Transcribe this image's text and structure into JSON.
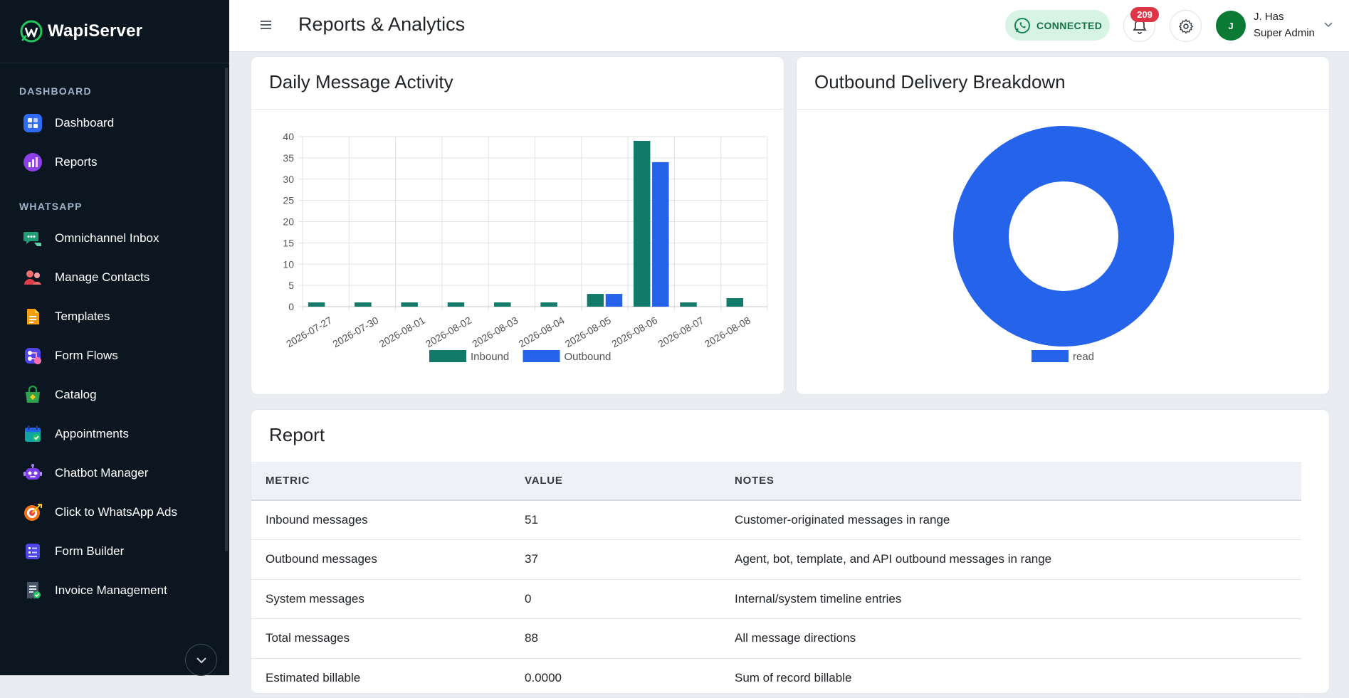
{
  "app": {
    "brand": "WapiServer"
  },
  "sidebar": {
    "sections": [
      {
        "title": "DASHBOARD"
      },
      {
        "title": "WHATSAPP"
      }
    ],
    "items": [
      {
        "label": "Dashboard",
        "icon": "dashboard-grid-icon"
      },
      {
        "label": "Reports",
        "icon": "reports-chart-icon"
      },
      {
        "label": "Omnichannel Inbox",
        "icon": "inbox-chat-icon"
      },
      {
        "label": "Manage Contacts",
        "icon": "contacts-icon"
      },
      {
        "label": "Templates",
        "icon": "template-document-icon"
      },
      {
        "label": "Form Flows",
        "icon": "form-flow-icon"
      },
      {
        "label": "Catalog",
        "icon": "catalog-bag-icon"
      },
      {
        "label": "Appointments",
        "icon": "calendar-icon"
      },
      {
        "label": "Chatbot Manager",
        "icon": "robot-icon"
      },
      {
        "label": "Click to WhatsApp Ads",
        "icon": "target-ads-icon"
      },
      {
        "label": "Form Builder",
        "icon": "form-builder-icon"
      },
      {
        "label": "Invoice Management",
        "icon": "invoice-icon"
      }
    ]
  },
  "header": {
    "title": "Reports & Analytics",
    "status": "CONNECTED",
    "notification_count": "209",
    "user": {
      "initial": "J",
      "name": "J. Has",
      "role": "Super Admin"
    }
  },
  "activity_card": {
    "title": "Daily Message Activity"
  },
  "delivery_card": {
    "title": "Outbound Delivery Breakdown"
  },
  "chart_data": [
    {
      "type": "bar",
      "title": "Daily Message Activity",
      "categories": [
        "2026-07-27",
        "2026-07-30",
        "2026-08-01",
        "2026-08-02",
        "2026-08-03",
        "2026-08-04",
        "2026-08-05",
        "2026-08-06",
        "2026-08-07",
        "2026-08-08"
      ],
      "series": [
        {
          "name": "Inbound",
          "color": "#137a6a",
          "values": [
            1,
            1,
            1,
            1,
            1,
            1,
            3,
            39,
            1,
            2
          ]
        },
        {
          "name": "Outbound",
          "color": "#2563eb",
          "values": [
            0,
            0,
            0,
            0,
            0,
            0,
            3,
            34,
            0,
            0
          ]
        }
      ],
      "ylim": [
        0,
        40
      ],
      "yticks": [
        0,
        5,
        10,
        15,
        20,
        25,
        30,
        35,
        40
      ],
      "grid": true,
      "legend": "bottom"
    },
    {
      "type": "pie",
      "variant": "doughnut",
      "title": "Outbound Delivery Breakdown",
      "labels": [
        "read"
      ],
      "values": [
        37
      ],
      "colors": [
        "#2563eb"
      ],
      "legend": "bottom"
    }
  ],
  "report": {
    "title": "Report",
    "columns": [
      "METRIC",
      "VALUE",
      "NOTES"
    ],
    "rows": [
      [
        "Inbound messages",
        "51",
        "Customer-originated messages in range"
      ],
      [
        "Outbound messages",
        "37",
        "Agent, bot, template, and API outbound messages in range"
      ],
      [
        "System messages",
        "0",
        "Internal/system timeline entries"
      ],
      [
        "Total messages",
        "88",
        "All message directions"
      ],
      [
        "Estimated billable",
        "0.0000",
        "Sum of record billable"
      ]
    ]
  },
  "colors": {
    "accent": "#2563eb",
    "inbound": "#137a6a",
    "sidebar_bg": "#0b1620"
  }
}
